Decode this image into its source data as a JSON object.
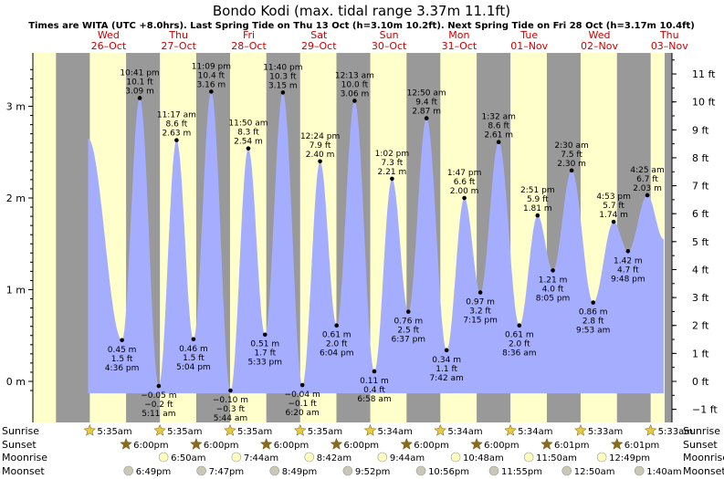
{
  "chart_data": {
    "type": "area",
    "title": "Bondo Kodi (max. tidal range 3.37m 11.1ft)",
    "subtitle": "Times are WITA (UTC +8.0hrs). Last Spring Tide on Thu 13 Oct (h=3.10m 10.2ft). Next Spring Tide on Fri 28 Oct (h=3.17m 10.4ft)",
    "colors": {
      "day": "#ffffcc",
      "night": "#999999",
      "tide_fill": "#a5adff",
      "date_label": "#cc0000",
      "sun_icon": "#e8c840",
      "sunset_icon": "#8b6a1c",
      "moonrise_icon": "#ffffc0",
      "moonset_icon": "#c8c8b4"
    },
    "y_axis_m": {
      "range": [
        -0.13,
        3.52
      ],
      "ticks": [
        0,
        1,
        2,
        3
      ],
      "tick_labels": [
        "0 m",
        "1 m",
        "2 m",
        "3 m"
      ]
    },
    "y_axis_ft": {
      "ticks": [
        -1,
        0,
        1,
        2,
        3,
        4,
        5,
        6,
        7,
        8,
        9,
        10,
        11
      ],
      "tick_labels": [
        "−1 ft",
        "0 ft",
        "1 ft",
        "2 ft",
        "3 ft",
        "4 ft",
        "5 ft",
        "6 ft",
        "7 ft",
        "8 ft",
        "9 ft",
        "10 ft",
        "11 ft"
      ]
    },
    "day_columns": [
      {
        "weekday": "Wed",
        "date": "26–Oct"
      },
      {
        "weekday": "Thu",
        "date": "27–Oct"
      },
      {
        "weekday": "Fri",
        "date": "28–Oct"
      },
      {
        "weekday": "Sat",
        "date": "29–Oct"
      },
      {
        "weekday": "Sun",
        "date": "30–Oct"
      },
      {
        "weekday": "Mon",
        "date": "31–Oct"
      },
      {
        "weekday": "Tue",
        "date": "01–Nov"
      },
      {
        "weekday": "Wed",
        "date": "02–Nov"
      },
      {
        "weekday": "Thu",
        "date": "03–Nov"
      }
    ],
    "series": [
      {
        "values": [
          {
            "kind": "high",
            "time_h": 5.0,
            "height_m": 2.65,
            "label": null
          },
          {
            "kind": "low",
            "time_h": 16.6,
            "height_m": 0.45,
            "label": [
              "0.45 m",
              "1.5 ft",
              "4:36 pm"
            ]
          },
          {
            "kind": "high",
            "time_h": 22.68,
            "height_m": 3.09,
            "label": [
              "10:41 pm",
              "10.1 ft",
              "3.09 m"
            ]
          },
          {
            "kind": "low",
            "time_h": 29.18,
            "height_m": -0.05,
            "label": [
              "−0.05 m",
              "−0.2 ft",
              "5:11 am"
            ]
          },
          {
            "kind": "high",
            "time_h": 35.28,
            "height_m": 2.63,
            "label": [
              "11:17 am",
              "8.6 ft",
              "2.63 m"
            ]
          },
          {
            "kind": "low",
            "time_h": 41.07,
            "height_m": 0.46,
            "label": [
              "0.46 m",
              "1.5 ft",
              "5:04 pm"
            ]
          },
          {
            "kind": "high",
            "time_h": 47.15,
            "height_m": 3.16,
            "label": [
              "11:09 pm",
              "10.4 ft",
              "3.16 m"
            ]
          },
          {
            "kind": "low",
            "time_h": 53.73,
            "height_m": -0.1,
            "label": [
              "−0.10 m",
              "−0.3 ft",
              "5:44 am"
            ]
          },
          {
            "kind": "high",
            "time_h": 59.83,
            "height_m": 2.54,
            "label": [
              "11:50 am",
              "8.3 ft",
              "2.54 m"
            ]
          },
          {
            "kind": "low",
            "time_h": 65.55,
            "height_m": 0.51,
            "label": [
              "0.51 m",
              "1.7 ft",
              "5:33 pm"
            ]
          },
          {
            "kind": "high",
            "time_h": 71.67,
            "height_m": 3.15,
            "label": [
              "11:40 pm",
              "10.3 ft",
              "3.15 m"
            ]
          },
          {
            "kind": "low",
            "time_h": 78.33,
            "height_m": -0.04,
            "label": [
              "−0.04 m",
              "−0.1 ft",
              "6:20 am"
            ]
          },
          {
            "kind": "high",
            "time_h": 84.4,
            "height_m": 2.4,
            "label": [
              "12:24 pm",
              "7.9 ft",
              "2.40 m"
            ]
          },
          {
            "kind": "low",
            "time_h": 90.07,
            "height_m": 0.61,
            "label": [
              "0.61 m",
              "2.0 ft",
              "6:04 pm"
            ]
          },
          {
            "kind": "high",
            "time_h": 96.22,
            "height_m": 3.06,
            "label": [
              "12:13 am",
              "10.0 ft",
              "3.06 m"
            ]
          },
          {
            "kind": "low",
            "time_h": 102.97,
            "height_m": 0.11,
            "label": [
              "0.11 m",
              "0.4 ft",
              "6:58 am"
            ]
          },
          {
            "kind": "high",
            "time_h": 109.03,
            "height_m": 2.21,
            "label": [
              "1:02 pm",
              "7.3 ft",
              "2.21 m"
            ]
          },
          {
            "kind": "low",
            "time_h": 114.62,
            "height_m": 0.76,
            "label": [
              "0.76 m",
              "2.5 ft",
              "6:37 pm"
            ]
          },
          {
            "kind": "high",
            "time_h": 120.83,
            "height_m": 2.87,
            "label": [
              "12:50 am",
              "9.4 ft",
              "2.87 m"
            ]
          },
          {
            "kind": "low",
            "time_h": 127.7,
            "height_m": 0.34,
            "label": [
              "0.34 m",
              "1.1 ft",
              "7:42 am"
            ]
          },
          {
            "kind": "high",
            "time_h": 133.78,
            "height_m": 2.0,
            "label": [
              "1:47 pm",
              "6.6 ft",
              "2.00 m"
            ]
          },
          {
            "kind": "low",
            "time_h": 139.25,
            "height_m": 0.97,
            "label": [
              "0.97 m",
              "3.2 ft",
              "7:15 pm"
            ]
          },
          {
            "kind": "high",
            "time_h": 145.53,
            "height_m": 2.61,
            "label": [
              "1:32 am",
              "8.6 ft",
              "2.61 m"
            ]
          },
          {
            "kind": "low",
            "time_h": 152.6,
            "height_m": 0.61,
            "label": [
              "0.61 m",
              "2.0 ft",
              "8:36 am"
            ]
          },
          {
            "kind": "high",
            "time_h": 158.85,
            "height_m": 1.81,
            "label": [
              "2:51 pm",
              "5.9 ft",
              "1.81 m"
            ]
          },
          {
            "kind": "low",
            "time_h": 164.08,
            "height_m": 1.21,
            "label": [
              "1.21 m",
              "4.0 ft",
              "8:05 pm"
            ]
          },
          {
            "kind": "high",
            "time_h": 170.5,
            "height_m": 2.3,
            "label": [
              "2:30 am",
              "7.5 ft",
              "2.30 m"
            ]
          },
          {
            "kind": "low",
            "time_h": 177.88,
            "height_m": 0.86,
            "label": [
              "0.86 m",
              "2.8 ft",
              "9:53 am"
            ]
          },
          {
            "kind": "high",
            "time_h": 184.88,
            "height_m": 1.74,
            "label": [
              "4:53 pm",
              "5.7 ft",
              "1.74 m"
            ]
          },
          {
            "kind": "low",
            "time_h": 189.8,
            "height_m": 1.42,
            "label": [
              "1.42 m",
              "4.7 ft",
              "9:48 pm"
            ]
          },
          {
            "kind": "high",
            "time_h": 196.42,
            "height_m": 2.03,
            "label": [
              "4:25 am",
              "6.7 ft",
              "2.03 m"
            ]
          },
          {
            "kind": "low",
            "time_h": 202.0,
            "height_m": 1.55,
            "label": null
          }
        ]
      }
    ],
    "night_bands": [
      [
        -6,
        5.58
      ],
      [
        18.0,
        29.58
      ],
      [
        42.0,
        53.58
      ],
      [
        66.0,
        77.58
      ],
      [
        90.0,
        101.57
      ],
      [
        114.0,
        125.57
      ],
      [
        138.0,
        149.57
      ],
      [
        162.02,
        173.57
      ],
      [
        186.02,
        197.55
      ]
    ],
    "astro_rows": [
      {
        "name": "Sunrise",
        "icon": "sun-icon",
        "events": [
          {
            "t": 5.58,
            "text": "5:35am"
          },
          {
            "t": 29.58,
            "text": "5:35am"
          },
          {
            "t": 53.58,
            "text": "5:35am"
          },
          {
            "t": 77.58,
            "text": "5:35am"
          },
          {
            "t": 101.57,
            "text": "5:34am"
          },
          {
            "t": 125.57,
            "text": "5:34am"
          },
          {
            "t": 149.57,
            "text": "5:34am"
          },
          {
            "t": 173.55,
            "text": "5:33am"
          },
          {
            "t": 197.55,
            "text": "5:33am"
          }
        ]
      },
      {
        "name": "Sunset",
        "icon": "sunset-icon",
        "events": [
          {
            "t": 18.0,
            "text": "6:00pm"
          },
          {
            "t": 42.0,
            "text": "6:00pm"
          },
          {
            "t": 66.0,
            "text": "6:00pm"
          },
          {
            "t": 90.0,
            "text": "6:00pm"
          },
          {
            "t": 114.0,
            "text": "6:00pm"
          },
          {
            "t": 138.0,
            "text": "6:00pm"
          },
          {
            "t": 162.02,
            "text": "6:01pm"
          },
          {
            "t": 186.02,
            "text": "6:01pm"
          }
        ]
      },
      {
        "name": "Moonrise",
        "icon": "moonrise-icon",
        "events": [
          {
            "t": 30.83,
            "text": "6:50am"
          },
          {
            "t": 55.73,
            "text": "7:44am"
          },
          {
            "t": 80.7,
            "text": "8:42am"
          },
          {
            "t": 105.73,
            "text": "9:44am"
          },
          {
            "t": 130.8,
            "text": "10:48am"
          },
          {
            "t": 155.83,
            "text": "11:50am"
          },
          {
            "t": 180.82,
            "text": "12:49pm"
          }
        ]
      },
      {
        "name": "Moonset",
        "icon": "moonset-icon",
        "events": [
          {
            "t": 18.82,
            "text": "6:49pm"
          },
          {
            "t": 43.78,
            "text": "7:47pm"
          },
          {
            "t": 68.82,
            "text": "8:49pm"
          },
          {
            "t": 93.87,
            "text": "9:52pm"
          },
          {
            "t": 118.93,
            "text": "10:56pm"
          },
          {
            "t": 143.92,
            "text": "11:55pm"
          },
          {
            "t": 168.83,
            "text": "12:50am"
          },
          {
            "t": 193.67,
            "text": "1:40am"
          }
        ]
      }
    ]
  }
}
